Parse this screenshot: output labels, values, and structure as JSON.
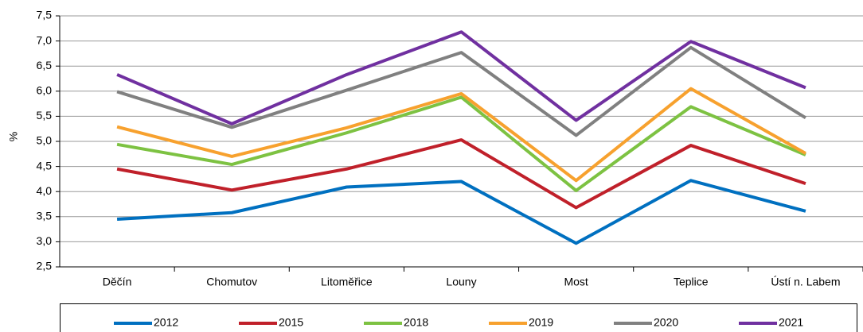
{
  "chart_data": {
    "type": "line",
    "y_label": "%",
    "categories": [
      "Děčín",
      "Chomutov",
      "Litoměřice",
      "Louny",
      "Most",
      "Teplice",
      "Ústí n. Labem"
    ],
    "series": [
      {
        "name": "2012",
        "color": "#0070c0",
        "values": [
          3.45,
          3.58,
          4.09,
          4.2,
          2.97,
          4.22,
          3.61
        ]
      },
      {
        "name": "2015",
        "color": "#c0202a",
        "values": [
          4.45,
          4.03,
          4.45,
          5.03,
          3.68,
          4.92,
          4.16
        ]
      },
      {
        "name": "2018",
        "color": "#7dc242",
        "values": [
          4.94,
          4.54,
          5.17,
          5.88,
          4.02,
          5.69,
          4.73
        ]
      },
      {
        "name": "2019",
        "color": "#f7a12e",
        "values": [
          5.29,
          4.7,
          5.27,
          5.95,
          4.22,
          6.05,
          4.76
        ]
      },
      {
        "name": "2020",
        "color": "#808080",
        "values": [
          5.99,
          5.28,
          6.02,
          6.77,
          5.12,
          6.87,
          5.47
        ]
      },
      {
        "name": "2021",
        "color": "#7030a0",
        "values": [
          6.33,
          5.35,
          6.33,
          7.18,
          5.42,
          6.99,
          6.07
        ]
      }
    ],
    "ylim": [
      2.5,
      7.5
    ],
    "yticks": [
      {
        "value": 2.5,
        "label": "2,5"
      },
      {
        "value": 3,
        "label": "3,0"
      },
      {
        "value": 3.5,
        "label": "3,5"
      },
      {
        "value": 4,
        "label": "4,0"
      },
      {
        "value": 4.5,
        "label": "4,5"
      },
      {
        "value": 5,
        "label": "5,0"
      },
      {
        "value": 5.5,
        "label": "5,5"
      },
      {
        "value": 6,
        "label": "6,0"
      },
      {
        "value": 6.5,
        "label": "6,5"
      },
      {
        "value": 7,
        "label": "7,0"
      },
      {
        "value": 7.5,
        "label": "7,5"
      }
    ],
    "grid": true,
    "legend": "bottom"
  }
}
